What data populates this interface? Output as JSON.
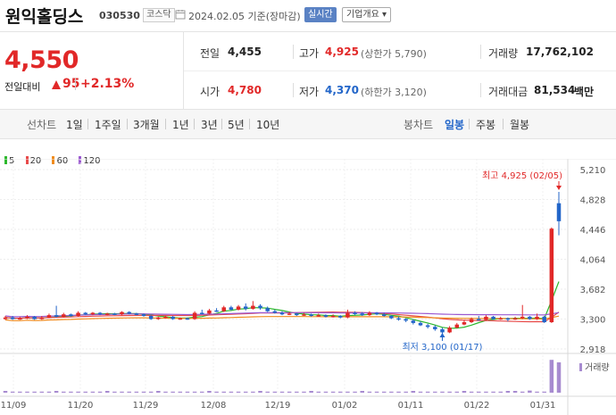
{
  "header": {
    "stock_name": "원익홀딩스",
    "stock_code": "030530",
    "market": "코스닥",
    "date": "2024.02.05 기준(장마감)",
    "realtime_label": "실시간",
    "company_label": "기업개요 ▾"
  },
  "price": {
    "current": "4,550",
    "change_label": "전일대비",
    "change_amount": "95",
    "change_rate": "+2.13%"
  },
  "quotes": {
    "prev_close_label": "전일",
    "prev_close": "4,455",
    "high_label": "고가",
    "high": "4,925",
    "upper_limit": "(상한가 5,790)",
    "volume_label": "거래량",
    "volume": "17,762,102",
    "open_label": "시가",
    "open": "4,780",
    "low_label": "저가",
    "low": "4,370",
    "lower_limit": "(하한가 3,120)",
    "trade_value_label": "거래대금",
    "trade_value": "81,534",
    "trade_value_unit": "백만"
  },
  "period": {
    "line_label": "선차트",
    "line_items": [
      "1일",
      "1주일",
      "3개월",
      "1년",
      "3년",
      "5년",
      "10년"
    ],
    "candle_label": "봉차트",
    "candle_items": [
      "일봉",
      "주봉",
      "월봉"
    ],
    "active_candle": "일봉"
  },
  "legend": [
    {
      "label": "5",
      "color": "#2db82d"
    },
    {
      "label": "20",
      "color": "#e84b4b"
    },
    {
      "label": "60",
      "color": "#f08c1e"
    },
    {
      "label": "120",
      "color": "#9b59d0"
    }
  ],
  "chart_data": {
    "type": "candlestick",
    "y_ticks": [
      "5,210",
      "4,828",
      "4,446",
      "4,064",
      "3,682",
      "3,300",
      "2,918"
    ],
    "x_ticks": [
      "11/09",
      "11/20",
      "11/29",
      "12/08",
      "12/19",
      "01/02",
      "01/11",
      "01/22",
      "01/31"
    ],
    "ylim": [
      2918,
      5210
    ],
    "max_annotation": "최고 4,925 (02/05)",
    "min_annotation": "최저 3,100 (01/17)",
    "volume_label": "거래량",
    "up_color": "#e12828",
    "down_color": "#2366c9"
  }
}
